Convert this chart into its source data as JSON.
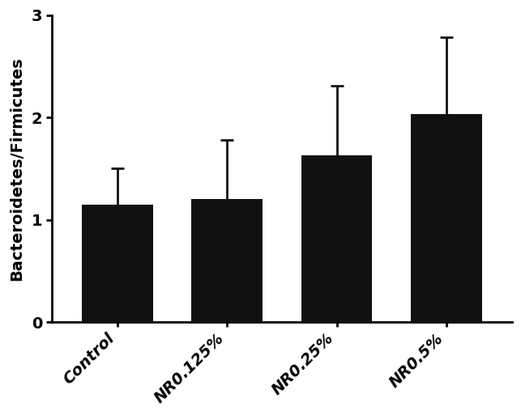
{
  "categories": [
    "Control",
    "NR0.125%",
    "NR0.25%",
    "NR0.5%"
  ],
  "values": [
    1.15,
    1.2,
    1.63,
    2.03
  ],
  "errors": [
    0.35,
    0.58,
    0.68,
    0.75
  ],
  "bar_color": "#111111",
  "error_color": "#111111",
  "ylabel": "Bacteroidetes/Firmicutes",
  "ylim": [
    0,
    3
  ],
  "yticks": [
    0,
    1,
    2,
    3
  ],
  "bar_width": 0.65,
  "background_color": "#ffffff",
  "capsize": 6,
  "error_linewidth": 2.0,
  "tick_fontsize": 14,
  "ylabel_fontsize": 14,
  "spine_linewidth": 2.0
}
